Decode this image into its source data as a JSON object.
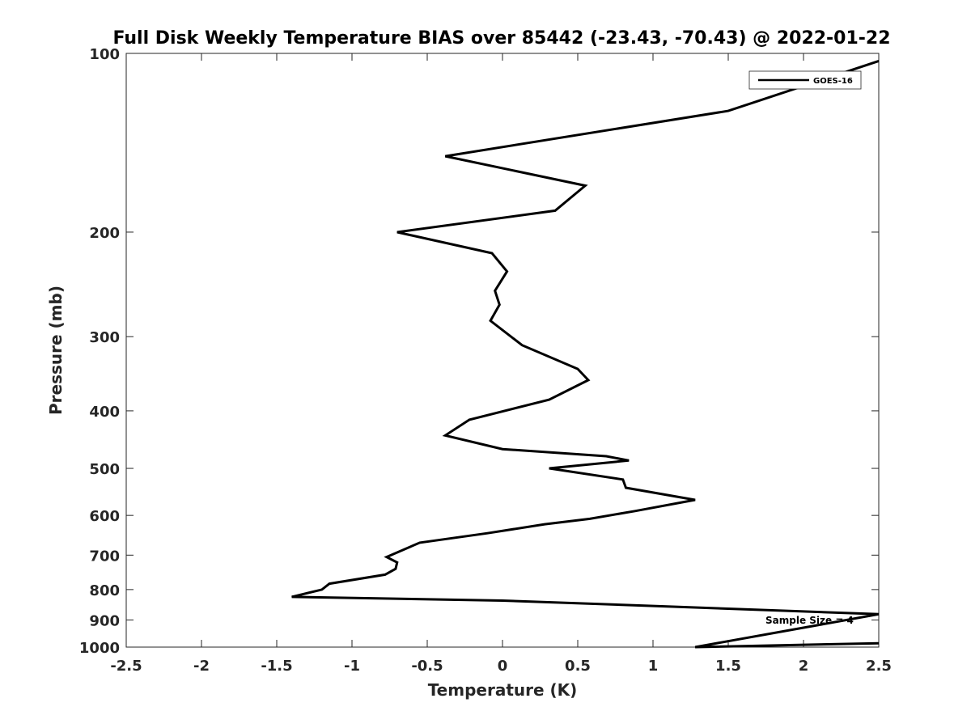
{
  "chart_data": {
    "type": "line",
    "title": "Full Disk Weekly Temperature BIAS over 85442 (-23.43, -70.43) @ 2022-01-22",
    "xlabel": "Temperature (K)",
    "ylabel": "Pressure (mb)",
    "xlim": [
      -2.5,
      2.5
    ],
    "ylim": [
      100,
      1000
    ],
    "y_scale": "log",
    "y_reversed": true,
    "x_ticks": [
      "-2.5",
      "-2",
      "-1.5",
      "-1",
      "-0.5",
      "0",
      "0.5",
      "1",
      "1.5",
      "2",
      "2.5"
    ],
    "x_tick_values": [
      -2.5,
      -2,
      -1.5,
      -1,
      -0.5,
      0,
      0.5,
      1,
      1.5,
      2,
      2.5
    ],
    "y_ticks": [
      "100",
      "200",
      "300",
      "400",
      "500",
      "600",
      "700",
      "800",
      "900",
      "1000"
    ],
    "y_tick_values": [
      100,
      200,
      300,
      400,
      500,
      600,
      700,
      800,
      900,
      1000
    ],
    "grid": false,
    "legend_position": "top-right",
    "series": [
      {
        "name": "GOES-16",
        "color": "#000000",
        "points": [
          [
            2.5,
            103
          ],
          [
            1.5,
            125
          ],
          [
            -0.38,
            149
          ],
          [
            0.55,
            167
          ],
          [
            0.35,
            184
          ],
          [
            -0.7,
            200
          ],
          [
            -0.07,
            217
          ],
          [
            0.03,
            233
          ],
          [
            -0.05,
            251
          ],
          [
            -0.02,
            265
          ],
          [
            -0.08,
            282
          ],
          [
            0.13,
            310
          ],
          [
            0.5,
            340
          ],
          [
            0.57,
            355
          ],
          [
            0.31,
            383
          ],
          [
            -0.22,
            414
          ],
          [
            -0.38,
            440
          ],
          [
            0.0,
            464
          ],
          [
            0.69,
            477
          ],
          [
            0.84,
            485
          ],
          [
            0.31,
            500
          ],
          [
            0.8,
            522
          ],
          [
            0.82,
            539
          ],
          [
            1.28,
            565
          ],
          [
            0.88,
            590
          ],
          [
            0.58,
            608
          ],
          [
            0.28,
            621
          ],
          [
            -0.1,
            643
          ],
          [
            -0.55,
            667
          ],
          [
            -0.77,
            705
          ],
          [
            -0.7,
            720
          ],
          [
            -0.71,
            738
          ],
          [
            -0.78,
            755
          ],
          [
            -1.15,
            782
          ],
          [
            -1.2,
            800
          ],
          [
            -1.4,
            823
          ],
          [
            0.0,
            835
          ],
          [
            1.15,
            855
          ],
          [
            2.5,
            880
          ],
          [
            1.28,
            1000
          ],
          [
            2.5,
            985
          ]
        ]
      }
    ],
    "annotations": [
      {
        "text": "Sample Size = 4",
        "position": "bottom-right"
      }
    ]
  }
}
